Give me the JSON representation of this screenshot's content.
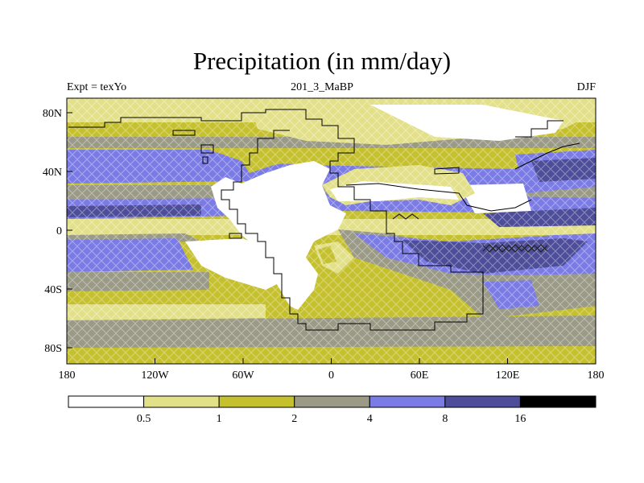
{
  "title": "Precipitation (in mm/day)",
  "subtitle_left": "Expt = texYo",
  "subtitle_center": "201_3_MaBP",
  "subtitle_right": "DJF",
  "lon_ticks": [
    "180",
    "120W",
    "60W",
    "0",
    "60E",
    "120E",
    "180"
  ],
  "lat_ticks": [
    "80N",
    "40N",
    "0",
    "40S",
    "80S"
  ],
  "colorbar": {
    "colors": [
      "#ffffff",
      "#e3e08a",
      "#c5c02e",
      "#9a9a86",
      "#7b7be6",
      "#4d4d99",
      "#000000"
    ],
    "labels": [
      "0.5",
      "1",
      "2",
      "4",
      "8",
      "16"
    ]
  }
}
